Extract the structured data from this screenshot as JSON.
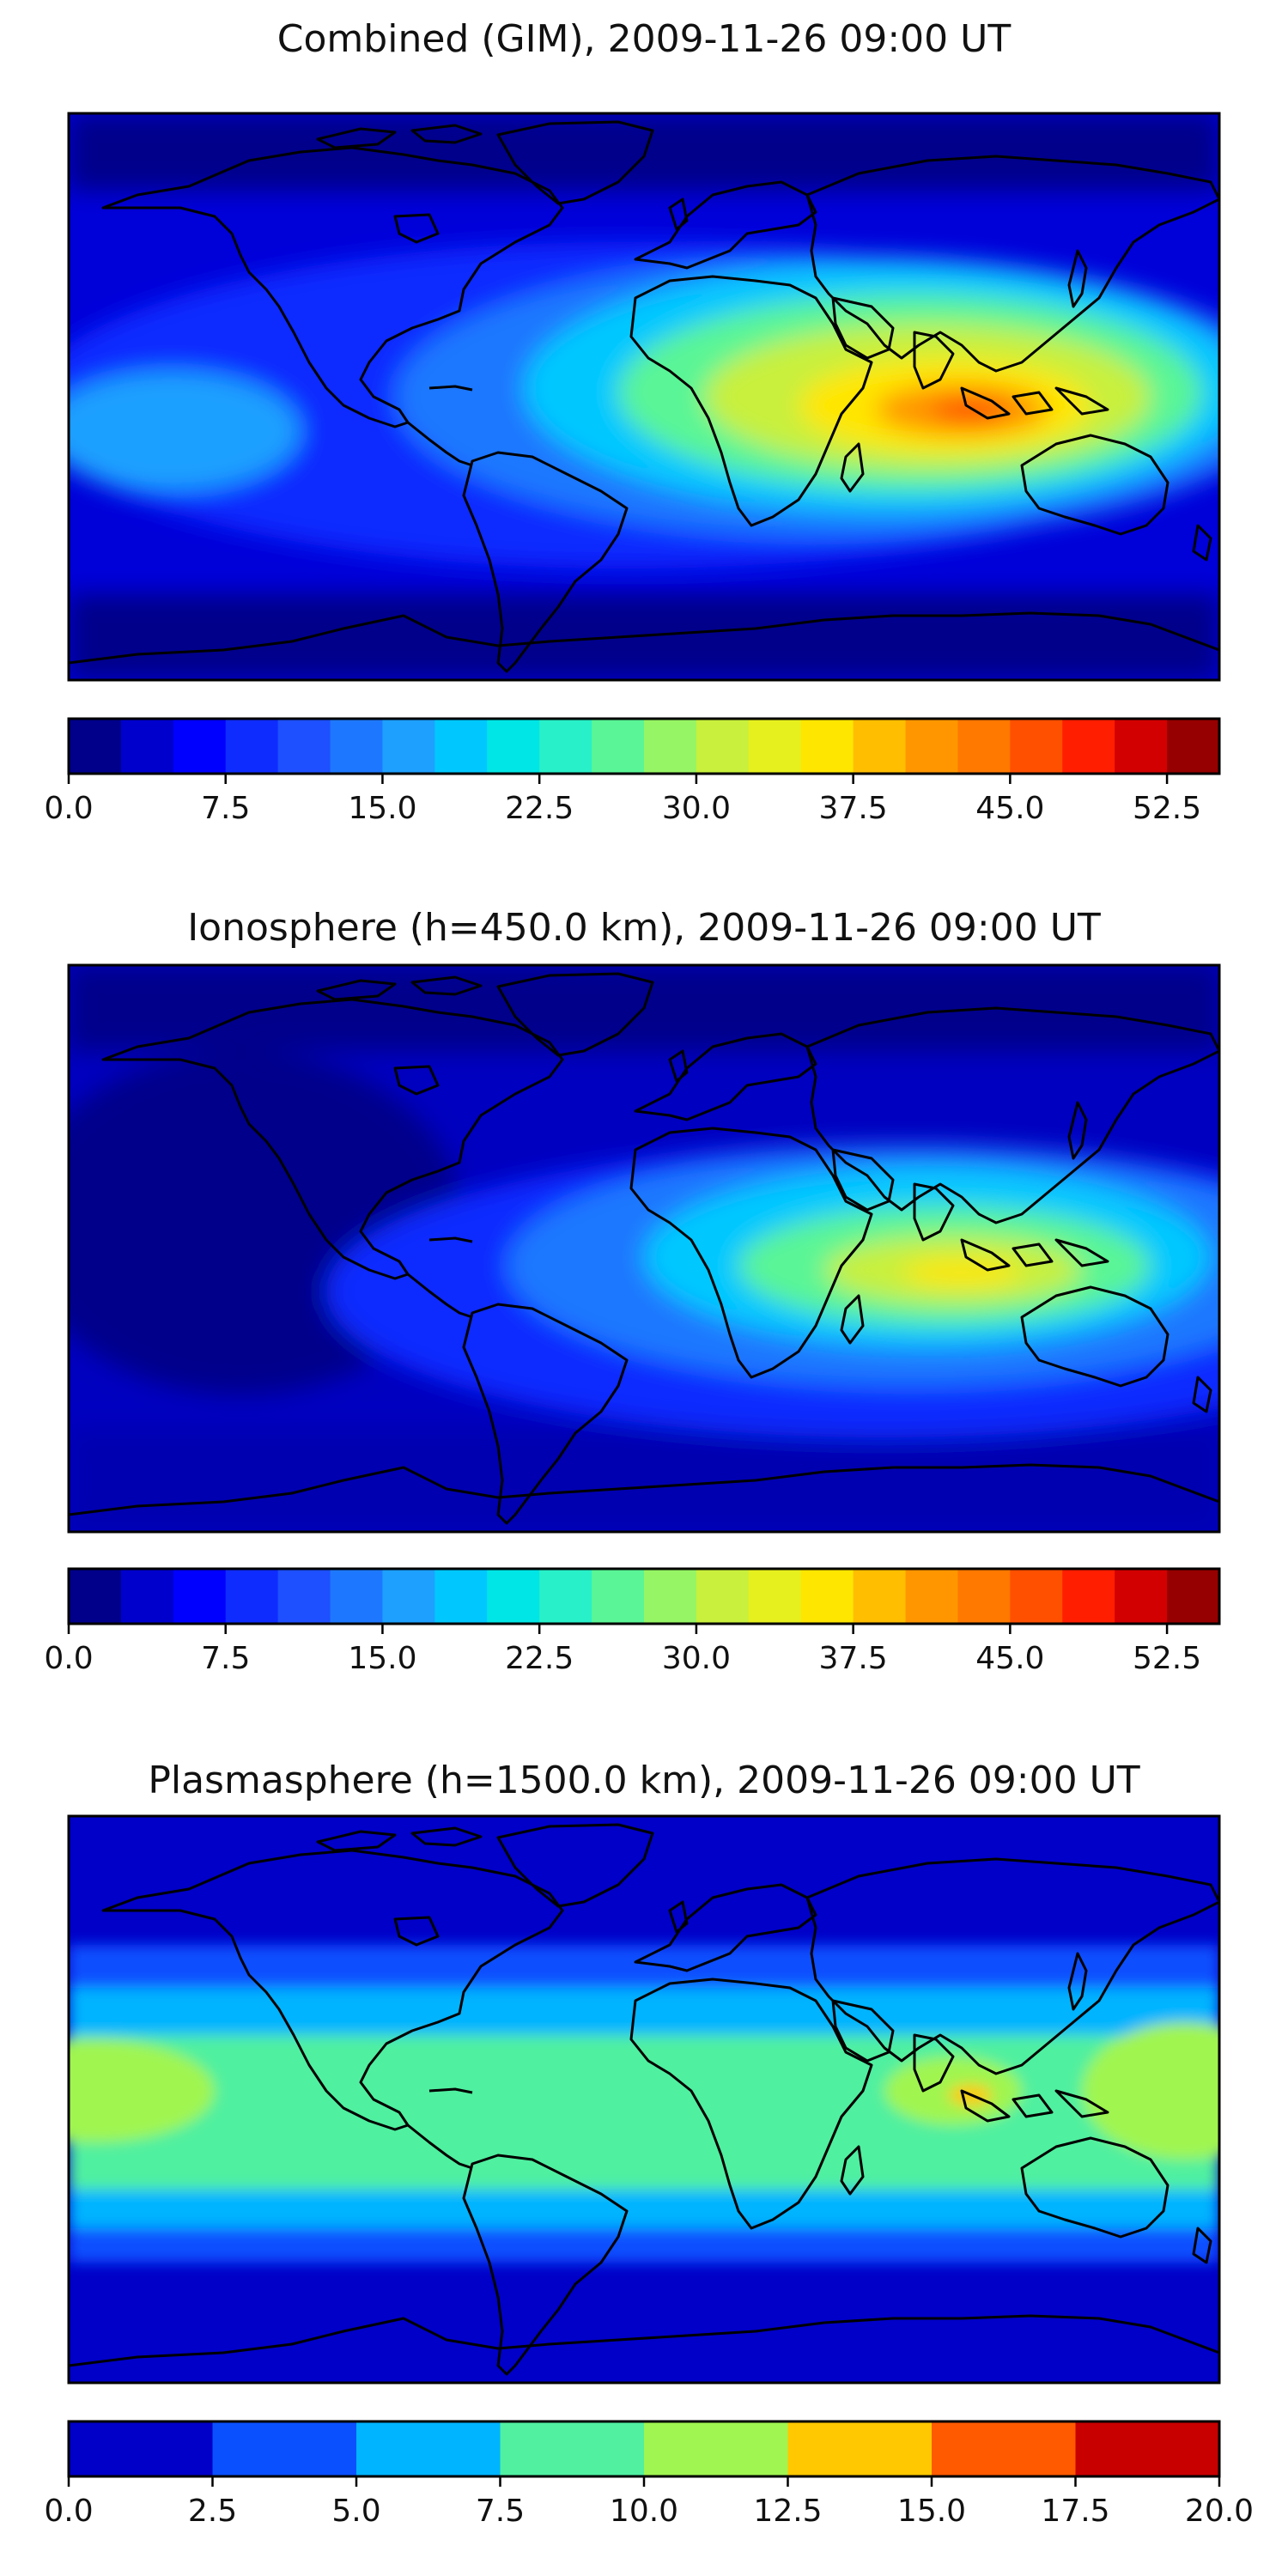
{
  "chart_data": [
    {
      "type": "heatmap",
      "title": "Combined (GIM), 2009-11-26 09:00 UT",
      "colorbar": {
        "range": [
          0,
          55
        ],
        "level_step": 2.5,
        "tick_labels": [
          "0.0",
          "7.5",
          "15.0",
          "22.5",
          "30.0",
          "37.5",
          "45.0",
          "52.5"
        ],
        "tick_values": [
          0,
          7.5,
          15,
          22.5,
          30,
          37.5,
          45,
          52.5
        ],
        "colors": [
          "#00008b",
          "#0000cd",
          "#0000ff",
          "#0f2cff",
          "#1e50ff",
          "#1e78ff",
          "#1ea0ff",
          "#00c8ff",
          "#00e6e6",
          "#28f0c8",
          "#5af596",
          "#96f564",
          "#c8f03c",
          "#e6f01e",
          "#ffe600",
          "#ffbe00",
          "#ff9600",
          "#ff7800",
          "#ff5000",
          "#ff1e00",
          "#d20000",
          "#960000"
        ]
      },
      "peak_region": "Indian Ocean / Indonesia",
      "max_value": 47.5
    },
    {
      "type": "heatmap",
      "title": "Ionosphere  (h=450.0 km), 2009-11-26 09:00 UT",
      "colorbar": {
        "range": [
          0,
          55
        ],
        "level_step": 2.5,
        "tick_labels": [
          "0.0",
          "7.5",
          "15.0",
          "22.5",
          "30.0",
          "37.5",
          "45.0",
          "52.5"
        ],
        "tick_values": [
          0,
          7.5,
          15,
          22.5,
          30,
          37.5,
          45,
          52.5
        ],
        "colors": [
          "#00008b",
          "#0000cd",
          "#0000ff",
          "#0f2cff",
          "#1e50ff",
          "#1e78ff",
          "#1ea0ff",
          "#00c8ff",
          "#00e6e6",
          "#28f0c8",
          "#5af596",
          "#96f564",
          "#c8f03c",
          "#e6f01e",
          "#ffe600",
          "#ffbe00",
          "#ff9600",
          "#ff7800",
          "#ff5000",
          "#ff1e00",
          "#d20000",
          "#960000"
        ]
      },
      "peak_region": "Indian Ocean",
      "max_value": 35.0
    },
    {
      "type": "heatmap",
      "title": "Plasmasphere (h=1500.0 km), 2009-11-26 09:00 UT",
      "colorbar": {
        "range": [
          0,
          20
        ],
        "level_step": 2.5,
        "tick_labels": [
          "0.0",
          "2.5",
          "5.0",
          "7.5",
          "10.0",
          "12.5",
          "15.0",
          "17.5",
          "20.0"
        ],
        "tick_values": [
          0,
          2.5,
          5,
          7.5,
          10,
          12.5,
          15,
          17.5,
          20
        ],
        "colors": [
          "#0000c8",
          "#0a50ff",
          "#00b4ff",
          "#50f0a0",
          "#a0f550",
          "#ffc800",
          "#ff5a00",
          "#c80000"
        ]
      },
      "peak_region": "Indonesia",
      "max_value": 15.0
    }
  ],
  "colors": {
    "background_deep": "#00008b",
    "coastline": "#000000"
  }
}
